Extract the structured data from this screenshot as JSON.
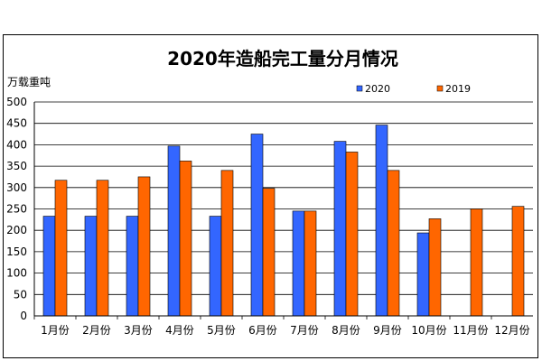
{
  "chart_data": {
    "type": "bar",
    "title": "2020年造船完工量分月情况",
    "ylabel": "万载重吨",
    "xlabel": "",
    "ylim": [
      0,
      500
    ],
    "yticks": [
      0,
      50,
      100,
      150,
      200,
      250,
      300,
      350,
      400,
      450,
      500
    ],
    "grid": true,
    "legend_position": "top-right",
    "categories": [
      "1月份",
      "2月份",
      "3月份",
      "4月份",
      "5月份",
      "6月份",
      "7月份",
      "8月份",
      "9月份",
      "10月份",
      "11月份",
      "12月份"
    ],
    "series": [
      {
        "name": "2020",
        "color": "#3366ff",
        "values": [
          233,
          233,
          233,
          397,
          233,
          425,
          245,
          408,
          446,
          194,
          null,
          null
        ]
      },
      {
        "name": "2019",
        "color": "#ff6600",
        "values": [
          317,
          317,
          325,
          362,
          340,
          298,
          245,
          383,
          340,
          227,
          250,
          256
        ]
      }
    ]
  }
}
